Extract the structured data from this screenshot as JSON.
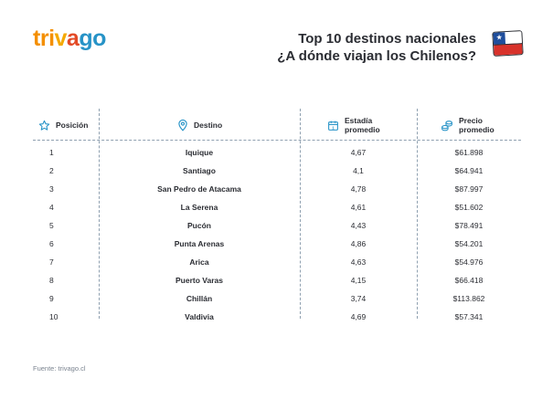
{
  "logo": {
    "letters": [
      {
        "ch": "t",
        "color": "#f48f00"
      },
      {
        "ch": "r",
        "color": "#f48f00"
      },
      {
        "ch": "i",
        "color": "#f48f00"
      },
      {
        "ch": "v",
        "color": "#f4a900"
      },
      {
        "ch": "a",
        "color": "#e34a26"
      },
      {
        "ch": "g",
        "color": "#2793c7"
      },
      {
        "ch": "o",
        "color": "#2793c7"
      }
    ]
  },
  "header": {
    "title_line1": "Top 10 destinos nacionales",
    "title_line2": "¿A dónde viajan los Chilenos?"
  },
  "table": {
    "columns": [
      {
        "key": "pos",
        "label": "Posición",
        "icon": "star-icon"
      },
      {
        "key": "dest",
        "label": "Destino",
        "icon": "location-pin-icon"
      },
      {
        "key": "est",
        "label_line1": "Estadía",
        "label_line2": "promedio",
        "icon": "calendar-icon"
      },
      {
        "key": "price",
        "label_line1": "Precio",
        "label_line2": "promedio",
        "icon": "coins-icon"
      }
    ],
    "rows": [
      {
        "pos": "1",
        "dest": "Iquique",
        "est": "4,67",
        "price": "$61.898"
      },
      {
        "pos": "2",
        "dest": "Santiago",
        "est": "4,1",
        "price": "$64.941"
      },
      {
        "pos": "3",
        "dest": "San Pedro de Atacama",
        "est": "4,78",
        "price": "$87.997"
      },
      {
        "pos": "4",
        "dest": "La Serena",
        "est": "4,61",
        "price": "$51.602"
      },
      {
        "pos": "5",
        "dest": "Pucón",
        "est": "4,43",
        "price": "$78.491"
      },
      {
        "pos": "6",
        "dest": "Punta Arenas",
        "est": "4,86",
        "price": "$54.201"
      },
      {
        "pos": "7",
        "dest": "Arica",
        "est": "4,63",
        "price": "$54.976"
      },
      {
        "pos": "8",
        "dest": "Puerto Varas",
        "est": "4,15",
        "price": "$66.418"
      },
      {
        "pos": "9",
        "dest": "Chillán",
        "est": "3,74",
        "price": "$113.862"
      },
      {
        "pos": "10",
        "dest": "Valdivia",
        "est": "4,69",
        "price": "$57.341"
      }
    ]
  },
  "footer": {
    "source": "Fuente: trivago.cl"
  },
  "colors": {
    "text": "#2b2d33",
    "accent_blue": "#2793c7",
    "divider": "#8fa0b0"
  }
}
